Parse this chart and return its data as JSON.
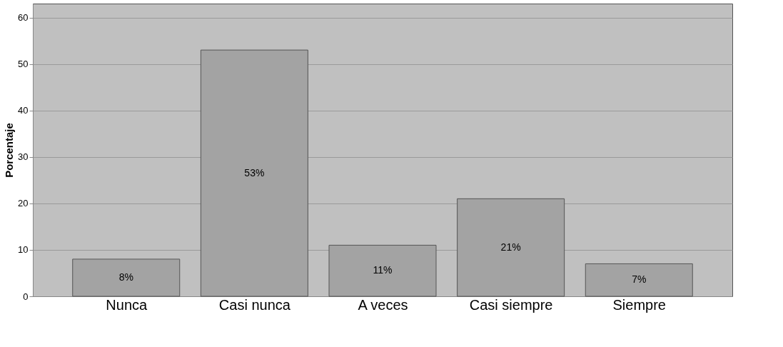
{
  "chart_data": {
    "type": "bar",
    "ylabel": "Porcentaje",
    "categories": [
      "Nunca",
      "Casi nunca",
      "A veces",
      "Casi siempre",
      "Siempre"
    ],
    "values": [
      8,
      53,
      11,
      21,
      7
    ],
    "value_labels": [
      "8%",
      "53%",
      "11%",
      "21%",
      "7%"
    ],
    "color": "#a3a3a3",
    "ylim": [
      0,
      63
    ],
    "yticks": [
      0,
      10,
      20,
      30,
      40,
      50,
      60
    ],
    "grid": "y"
  }
}
